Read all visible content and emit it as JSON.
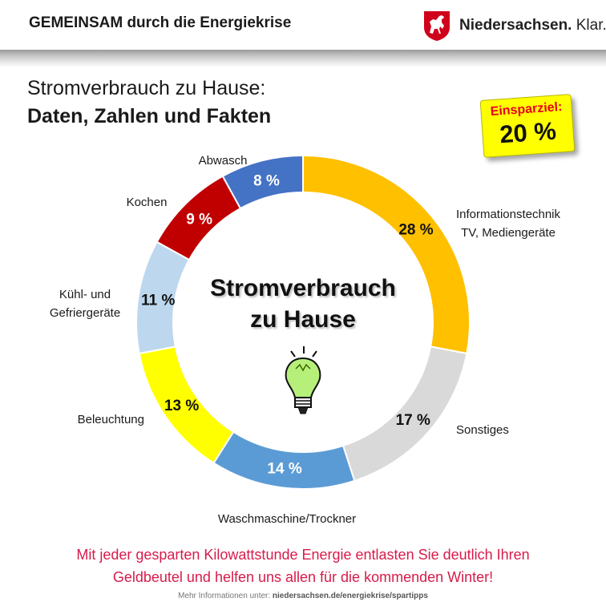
{
  "header": {
    "title": "GEMEINSAM durch die Energiekrise",
    "brand_name": "Niedersachsen.",
    "brand_suffix": "Klar.",
    "brand_color": "#d0021b"
  },
  "headline": "Stromverbrauch  zu Hause:",
  "subheadline": "Daten, Zahlen und Fakten",
  "savings_goal": {
    "label": "Einsparziel:",
    "value": "20 %"
  },
  "center_text": {
    "line1": "Stromverbrauch",
    "line2": "zu Hause"
  },
  "bulb_icon": "light-bulb-icon",
  "chart_data": {
    "type": "pie",
    "donut": true,
    "title": "Stromverbrauch zu Hause",
    "unit": "%",
    "slices": [
      {
        "label": "Informationstechnik TV, Mediengeräte",
        "value": 28,
        "value_label": "28 %",
        "color": "#ffc000"
      },
      {
        "label": "Sonstiges",
        "value": 17,
        "value_label": "17 %",
        "color": "#d9d9d9"
      },
      {
        "label": "Waschmaschine/Trockner",
        "value": 14,
        "value_label": "14 %",
        "color": "#5b9bd5"
      },
      {
        "label": "Beleuchtung",
        "value": 13,
        "value_label": "13 %",
        "color": "#ffff00"
      },
      {
        "label": "Kühl- und Gefriergeräte",
        "value": 11,
        "value_label": "11 %",
        "color": "#bdd7ee"
      },
      {
        "label": "Kochen",
        "value": 9,
        "value_label": "9 %",
        "color": "#c00000"
      },
      {
        "label": "Abwasch",
        "value": 8,
        "value_label": "8 %",
        "color": "#4472c4"
      }
    ]
  },
  "footer": {
    "message_line1": "Mit jeder gesparten Kilowattstunde Energie entlasten Sie deutlich Ihren",
    "message_line2": "Geldbeutel und helfen uns allen für die kommenden Winter!",
    "source_prefix": "Mehr Informationen unter:",
    "source_link": "niedersachsen.de/energiekrise/spartipps"
  }
}
